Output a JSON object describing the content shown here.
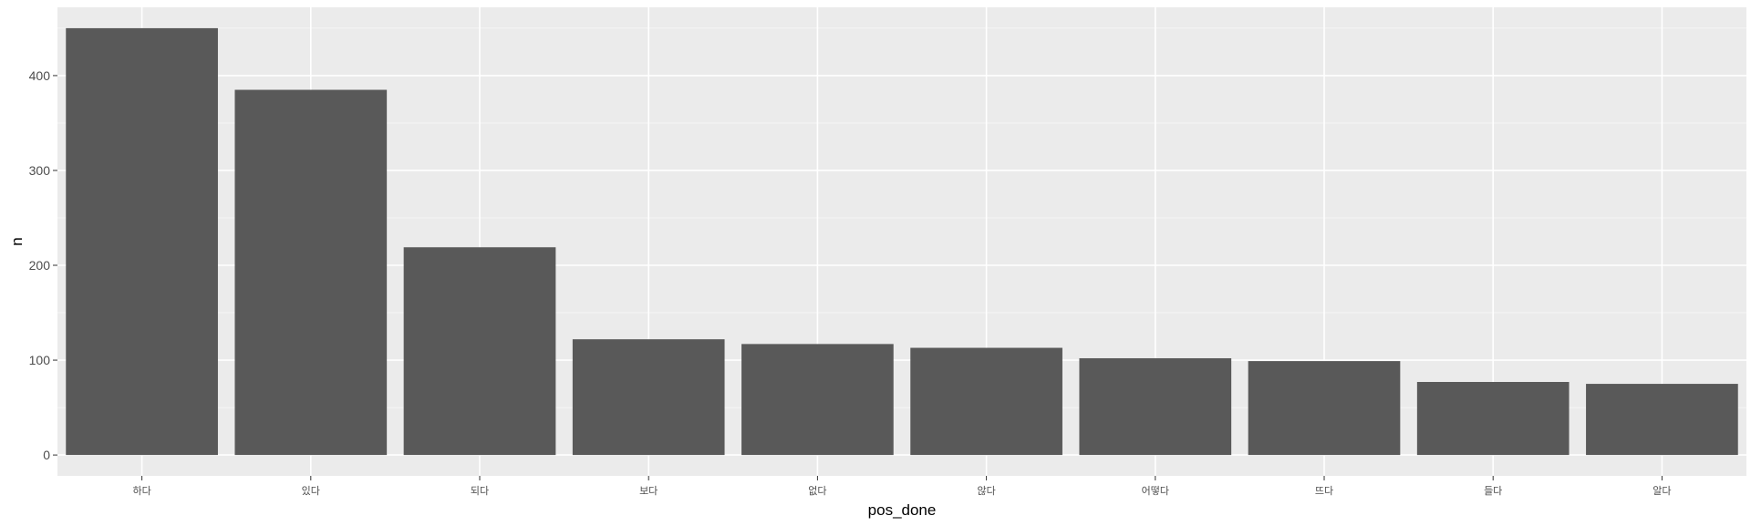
{
  "chart_data": {
    "type": "bar",
    "categories": [
      "하다",
      "있다",
      "되다",
      "보다",
      "없다",
      "않다",
      "어떻다",
      "뜨다",
      "들다",
      "알다"
    ],
    "values": [
      450,
      385,
      219,
      122,
      117,
      113,
      102,
      99,
      77,
      75
    ],
    "xlabel": "pos_done",
    "ylabel": "n",
    "ylim": [
      -22,
      472
    ],
    "yticks": [
      0,
      100,
      200,
      300,
      400
    ],
    "grid": true,
    "legend": "none",
    "colors": {
      "bar": "#595959",
      "panel": "#ebebeb",
      "grid_major": "#ffffff",
      "grid_minor": "#f5f5f5"
    }
  }
}
